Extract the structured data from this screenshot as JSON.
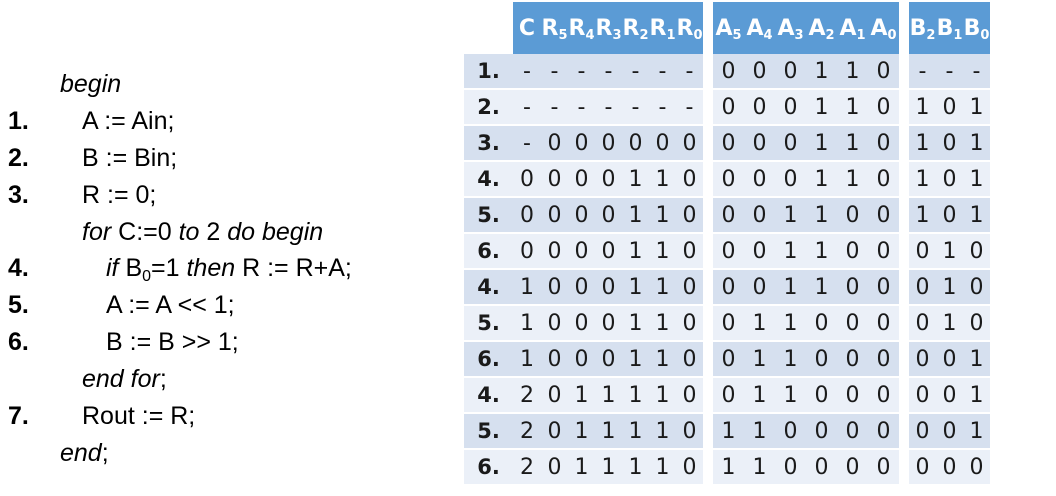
{
  "pseudocode": {
    "lines": [
      {
        "num": "",
        "parts": [
          {
            "text": "begin",
            "italic": true
          }
        ],
        "indent": 0
      },
      {
        "num": "1.",
        "parts": [
          {
            "text": "A := Ain;"
          }
        ],
        "indent": 1
      },
      {
        "num": "2.",
        "parts": [
          {
            "text": "B := Bin;"
          }
        ],
        "indent": 1
      },
      {
        "num": "3.",
        "parts": [
          {
            "text": "R := 0;"
          }
        ],
        "indent": 1
      },
      {
        "num": "",
        "parts": [
          {
            "text": "for",
            "italic": true
          },
          {
            "text": " C:=0 "
          },
          {
            "text": "to",
            "italic": true
          },
          {
            "text": " 2 "
          },
          {
            "text": "do begin",
            "italic": true
          }
        ],
        "indent": 1
      },
      {
        "num": "4.",
        "parts": [
          {
            "text": "if",
            "italic": true
          },
          {
            "text": " B"
          },
          {
            "text": "0",
            "sub": true
          },
          {
            "text": "=1 "
          },
          {
            "text": "then",
            "italic": true
          },
          {
            "text": " R := R+A;"
          }
        ],
        "indent": 2
      },
      {
        "num": "5.",
        "parts": [
          {
            "text": "A := A << 1;"
          }
        ],
        "indent": 2
      },
      {
        "num": "6.",
        "parts": [
          {
            "text": "B := B >> 1;"
          }
        ],
        "indent": 2
      },
      {
        "num": "",
        "parts": [
          {
            "text": "end for",
            "italic": true
          },
          {
            "text": ";"
          }
        ],
        "indent": 1
      },
      {
        "num": "7.",
        "parts": [
          {
            "text": "Rout := R;"
          }
        ],
        "indent": 1
      },
      {
        "num": "",
        "parts": [
          {
            "text": "end",
            "italic": true
          },
          {
            "text": ";"
          }
        ],
        "indent": 0
      }
    ]
  },
  "table": {
    "headers": [
      {
        "group": "C",
        "cells": [
          {
            "base": "C",
            "sub": ""
          }
        ]
      },
      {
        "group": "R",
        "cells": [
          {
            "base": "R",
            "sub": "5"
          },
          {
            "base": "R",
            "sub": "4"
          },
          {
            "base": "R",
            "sub": "3"
          },
          {
            "base": "R",
            "sub": "2"
          },
          {
            "base": "R",
            "sub": "1"
          },
          {
            "base": "R",
            "sub": "0"
          }
        ]
      },
      {
        "group": "A",
        "cells": [
          {
            "base": "A",
            "sub": "5"
          },
          {
            "base": "A",
            "sub": "4"
          },
          {
            "base": "A",
            "sub": "3"
          },
          {
            "base": "A",
            "sub": "2"
          },
          {
            "base": "A",
            "sub": "1"
          },
          {
            "base": "A",
            "sub": "0"
          }
        ]
      },
      {
        "group": "B",
        "cells": [
          {
            "base": "B",
            "sub": "2"
          },
          {
            "base": "B",
            "sub": "1"
          },
          {
            "base": "B",
            "sub": "0"
          }
        ]
      }
    ],
    "rows": [
      {
        "step": "1.",
        "C": "-",
        "R": [
          "-",
          "-",
          "-",
          "-",
          "-",
          "-"
        ],
        "A": [
          "0",
          "0",
          "0",
          "1",
          "1",
          "0"
        ],
        "B": [
          "-",
          "-",
          "-"
        ]
      },
      {
        "step": "2.",
        "C": "-",
        "R": [
          "-",
          "-",
          "-",
          "-",
          "-",
          "-"
        ],
        "A": [
          "0",
          "0",
          "0",
          "1",
          "1",
          "0"
        ],
        "B": [
          "1",
          "0",
          "1"
        ]
      },
      {
        "step": "3.",
        "C": "-",
        "R": [
          "0",
          "0",
          "0",
          "0",
          "0",
          "0"
        ],
        "A": [
          "0",
          "0",
          "0",
          "1",
          "1",
          "0"
        ],
        "B": [
          "1",
          "0",
          "1"
        ]
      },
      {
        "step": "4.",
        "C": "0",
        "R": [
          "0",
          "0",
          "0",
          "1",
          "1",
          "0"
        ],
        "A": [
          "0",
          "0",
          "0",
          "1",
          "1",
          "0"
        ],
        "B": [
          "1",
          "0",
          "1"
        ]
      },
      {
        "step": "5.",
        "C": "0",
        "R": [
          "0",
          "0",
          "0",
          "1",
          "1",
          "0"
        ],
        "A": [
          "0",
          "0",
          "1",
          "1",
          "0",
          "0"
        ],
        "B": [
          "1",
          "0",
          "1"
        ]
      },
      {
        "step": "6.",
        "C": "0",
        "R": [
          "0",
          "0",
          "0",
          "1",
          "1",
          "0"
        ],
        "A": [
          "0",
          "0",
          "1",
          "1",
          "0",
          "0"
        ],
        "B": [
          "0",
          "1",
          "0"
        ]
      },
      {
        "step": "4.",
        "C": "1",
        "R": [
          "0",
          "0",
          "0",
          "1",
          "1",
          "0"
        ],
        "A": [
          "0",
          "0",
          "1",
          "1",
          "0",
          "0"
        ],
        "B": [
          "0",
          "1",
          "0"
        ]
      },
      {
        "step": "5.",
        "C": "1",
        "R": [
          "0",
          "0",
          "0",
          "1",
          "1",
          "0"
        ],
        "A": [
          "0",
          "1",
          "1",
          "0",
          "0",
          "0"
        ],
        "B": [
          "0",
          "1",
          "0"
        ]
      },
      {
        "step": "6.",
        "C": "1",
        "R": [
          "0",
          "0",
          "0",
          "1",
          "1",
          "0"
        ],
        "A": [
          "0",
          "1",
          "1",
          "0",
          "0",
          "0"
        ],
        "B": [
          "0",
          "0",
          "1"
        ]
      },
      {
        "step": "4.",
        "C": "2",
        "R": [
          "0",
          "1",
          "1",
          "1",
          "1",
          "0"
        ],
        "A": [
          "0",
          "1",
          "1",
          "0",
          "0",
          "0"
        ],
        "B": [
          "0",
          "0",
          "1"
        ]
      },
      {
        "step": "5.",
        "C": "2",
        "R": [
          "0",
          "1",
          "1",
          "1",
          "1",
          "0"
        ],
        "A": [
          "1",
          "1",
          "0",
          "0",
          "0",
          "0"
        ],
        "B": [
          "0",
          "0",
          "1"
        ]
      },
      {
        "step": "6.",
        "C": "2",
        "R": [
          "0",
          "1",
          "1",
          "1",
          "1",
          "0"
        ],
        "A": [
          "1",
          "1",
          "0",
          "0",
          "0",
          "0"
        ],
        "B": [
          "0",
          "0",
          "0"
        ]
      }
    ],
    "colors": {
      "header_bg": "#5b9bd5",
      "row_odd_bg": "#d6e0ef",
      "row_even_bg": "#ebf0f8"
    }
  }
}
